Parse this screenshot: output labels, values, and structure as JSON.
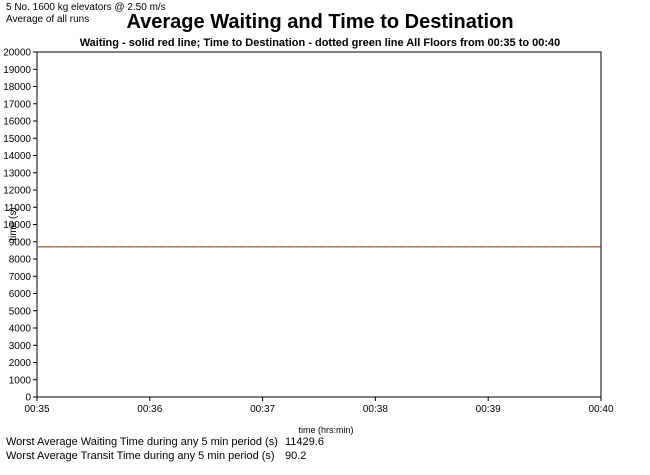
{
  "header": {
    "elevator_info": "5 No. 1600 kg elevators @ 2.50 m/s",
    "runs_info": "Average of all runs"
  },
  "chart_data": {
    "type": "line",
    "title": "Average Waiting and Time to Destination",
    "subtitle": "Waiting - solid red line; Time to Destination - dotted green line  All Floors from 00:35 to 00:40",
    "xlabel": "time (hrs:min)",
    "ylabel": "time (s)",
    "x": [
      "00:35",
      "00:36",
      "00:37",
      "00:38",
      "00:39",
      "00:40"
    ],
    "ylim": [
      0,
      20000
    ],
    "yticks": [
      0,
      1000,
      2000,
      3000,
      4000,
      5000,
      6000,
      7000,
      8000,
      9000,
      10000,
      11000,
      12000,
      13000,
      14000,
      15000,
      16000,
      17000,
      18000,
      19000,
      20000
    ],
    "grid": false,
    "series": [
      {
        "name": "Waiting",
        "color": "#cc0000",
        "style": "solid",
        "values": [
          8700,
          8700,
          8700,
          8700,
          8700,
          8700
        ]
      },
      {
        "name": "Time to Destination",
        "color": "#339933",
        "style": "dotted",
        "values": [
          8700,
          8700,
          8700,
          8700,
          8700,
          8700
        ]
      }
    ]
  },
  "stats": [
    {
      "label": "Worst Average Waiting Time during any 5 min period (s)",
      "value": "11429.6"
    },
    {
      "label": "Worst Average Transit Time during any 5 min period (s)",
      "value": "90.2"
    }
  ]
}
